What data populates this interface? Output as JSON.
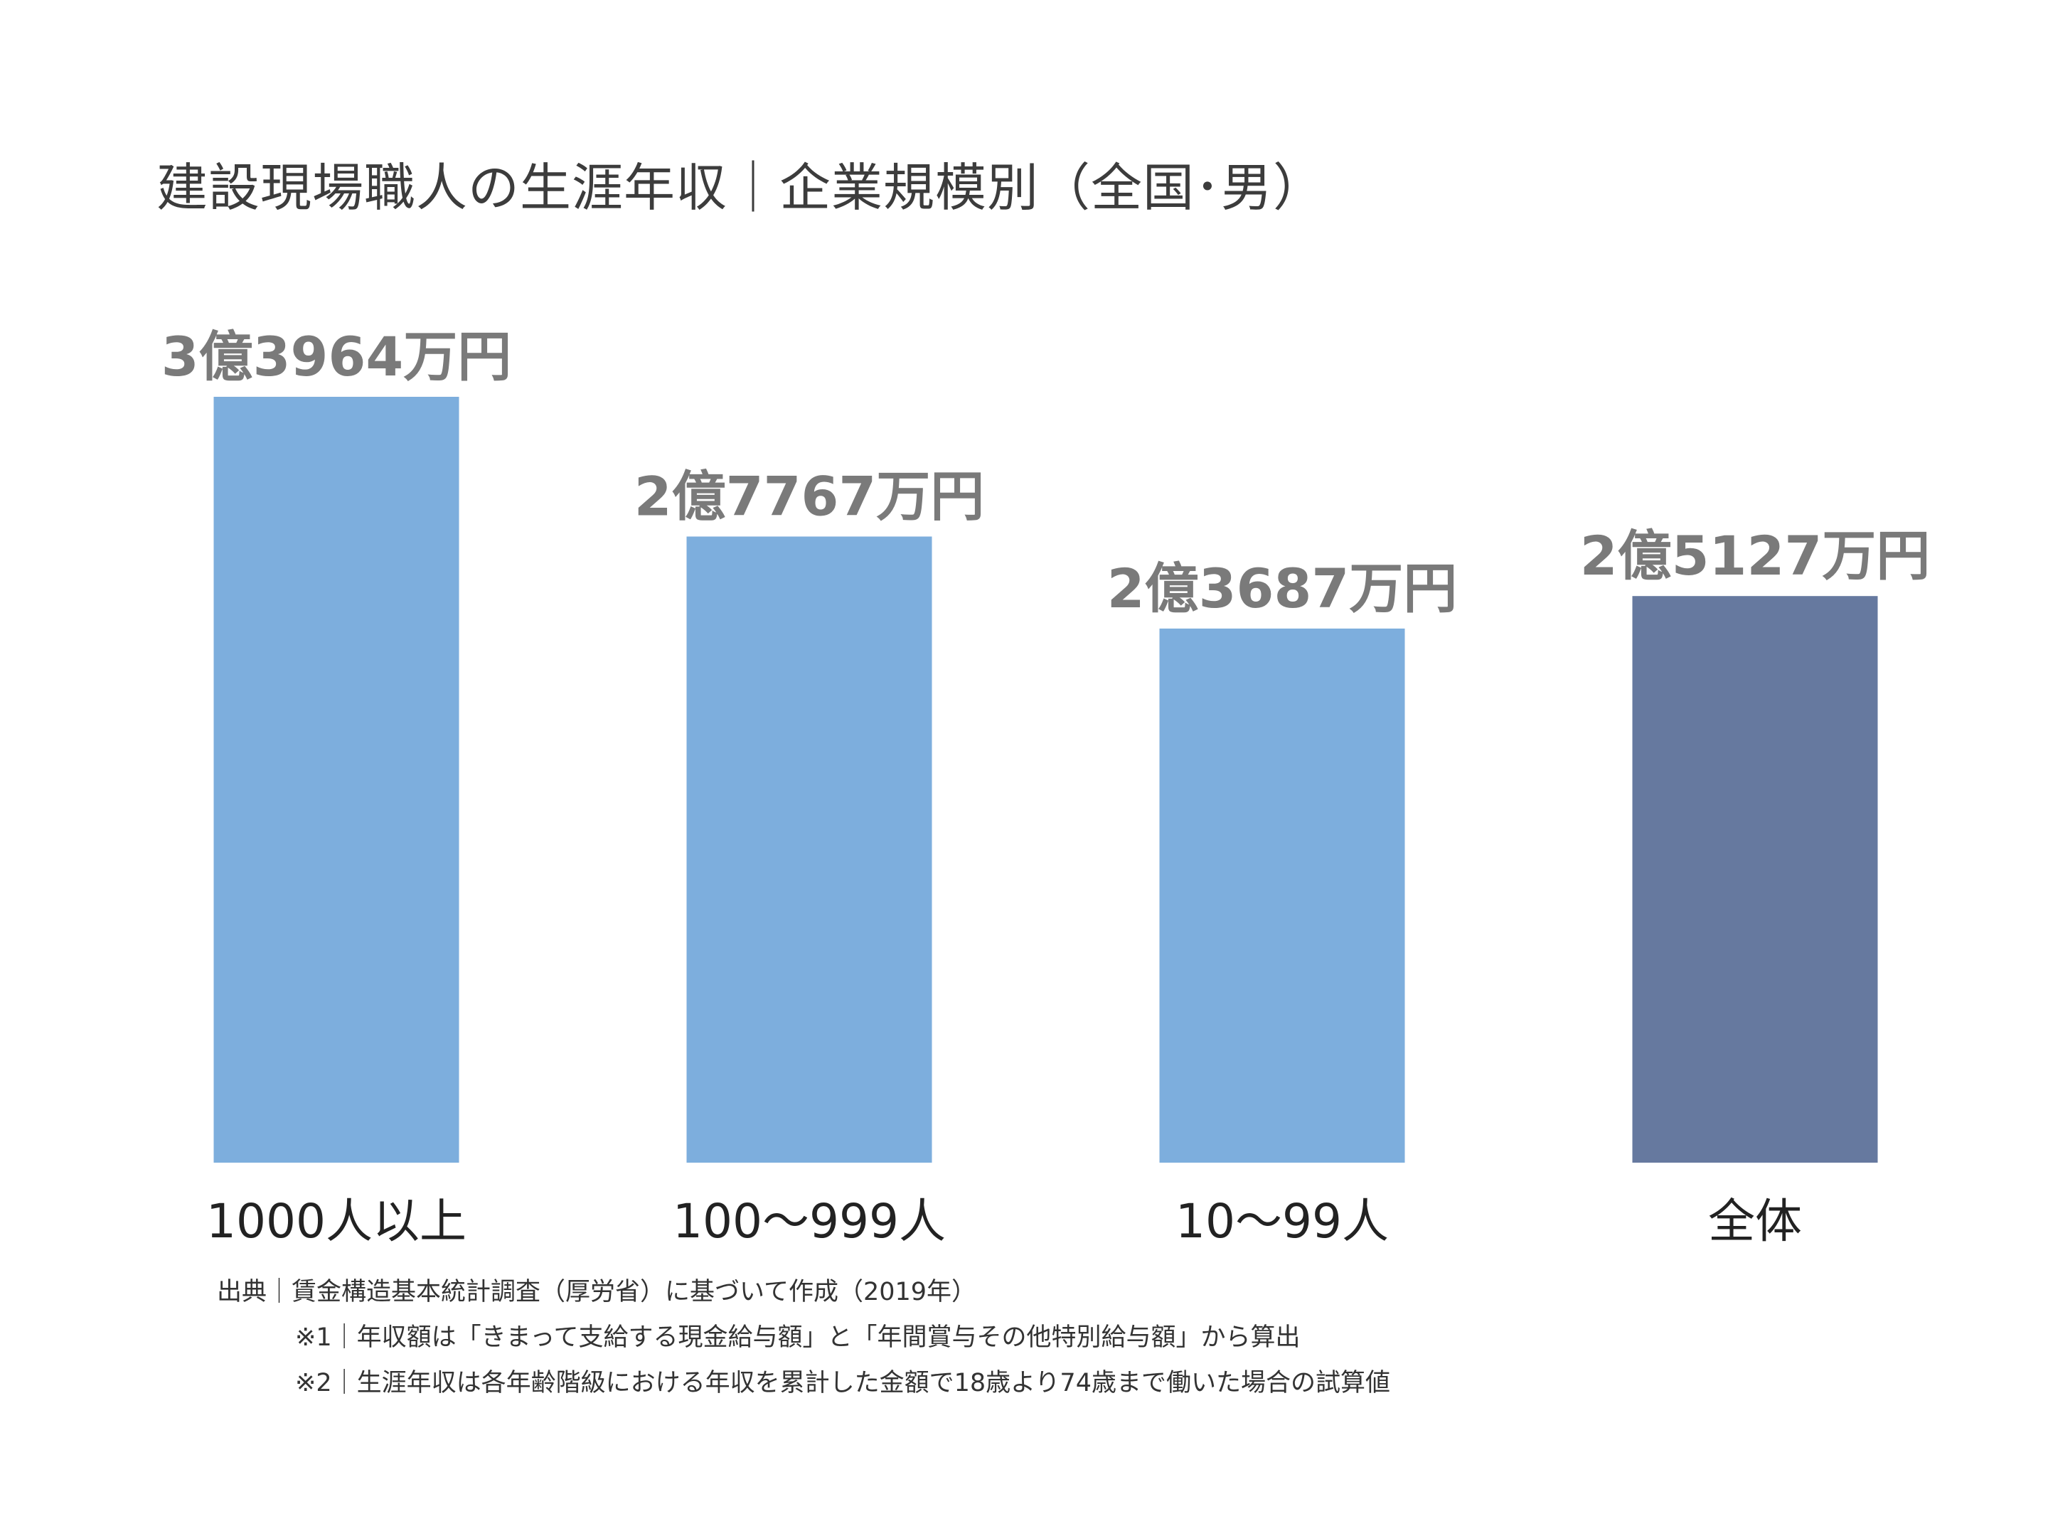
{
  "chart_data": {
    "type": "bar",
    "title": "建設現場職人の生涯年収｜企業規模別（全国･男）",
    "categories": [
      "1000人以上",
      "100〜999人",
      "10〜99人",
      "全体"
    ],
    "values": [
      33964,
      27767,
      23687,
      25127
    ],
    "value_unit": "万円",
    "data_labels": [
      "3億3964万円",
      "2億7767万円",
      "2億3687万円",
      "2億5127万円"
    ],
    "highlight_index": 3,
    "ylim": [
      0,
      33964
    ],
    "xlabel": "",
    "ylabel": "",
    "grid": false,
    "colors": {
      "bar": "#7daedd",
      "highlight": "#66799f",
      "label": "#7a7a7a"
    }
  },
  "notes": {
    "source": "出典｜賃金構造基本統計調査（厚労省）に基づいて作成（2019年）",
    "note1": "※1｜年収額は「きまって支給する現金給与額」と「年間賞与その他特別給与額」から算出",
    "note2": "※2｜生涯年収は各年齢階級における年収を累計した金額で18歳より74歳まで働いた場合の試算値"
  }
}
